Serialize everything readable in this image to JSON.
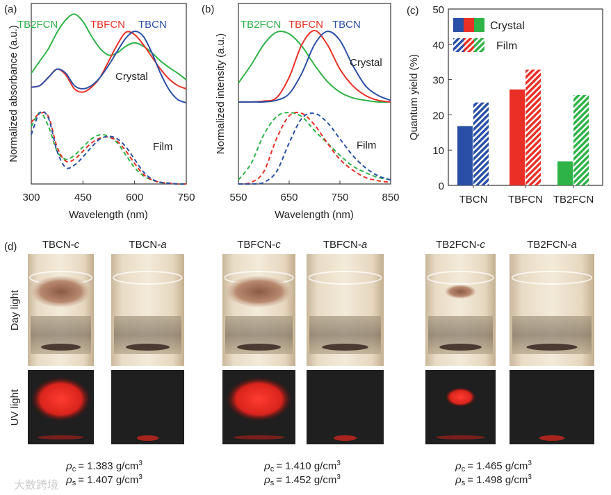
{
  "colors": {
    "TBCN": "#2a4fa6",
    "TBFCN": "#ea3026",
    "TB2FCN": "#2db346"
  },
  "chart_data": [
    {
      "panel": "(a)",
      "type": "line",
      "xlabel": "Wavelength (nm)",
      "ylabel": "Normalized absorbance (a.u.)",
      "xlim": [
        300,
        750
      ],
      "ylim": [
        0,
        2.2
      ],
      "xticks": [
        "300",
        "450",
        "600",
        "750"
      ],
      "annotations": {
        "crystal": "Crystal",
        "film": "Film"
      },
      "legend": [
        "TB2FCN",
        "TBFCN",
        "TBCN"
      ],
      "x": [
        300,
        325,
        350,
        375,
        400,
        425,
        450,
        475,
        500,
        525,
        550,
        575,
        600,
        625,
        650,
        675,
        700,
        725,
        750
      ],
      "series": [
        {
          "name": "TB2FCN",
          "state": "Crystal",
          "style": "solid",
          "values": [
            1.35,
            1.5,
            1.65,
            1.85,
            2.0,
            2.07,
            1.98,
            1.8,
            1.65,
            1.57,
            1.6,
            1.68,
            1.72,
            1.68,
            1.6,
            1.5,
            1.42,
            1.35,
            1.27
          ]
        },
        {
          "name": "TBFCN",
          "state": "Crystal",
          "style": "solid",
          "values": [
            1.18,
            1.2,
            1.3,
            1.4,
            1.33,
            1.16,
            1.12,
            1.18,
            1.3,
            1.5,
            1.7,
            1.85,
            1.82,
            1.7,
            1.55,
            1.4,
            1.28,
            1.2,
            1.16
          ]
        },
        {
          "name": "TBCN",
          "state": "Crystal",
          "style": "solid",
          "values": [
            1.18,
            1.2,
            1.3,
            1.4,
            1.35,
            1.2,
            1.16,
            1.2,
            1.3,
            1.45,
            1.62,
            1.78,
            1.86,
            1.8,
            1.6,
            1.35,
            1.15,
            1.03,
            0.99
          ]
        },
        {
          "name": "TB2FCN",
          "state": "Film",
          "style": "dashed",
          "values": [
            0.7,
            0.87,
            0.7,
            0.4,
            0.3,
            0.35,
            0.45,
            0.55,
            0.6,
            0.58,
            0.5,
            0.35,
            0.2,
            0.1,
            0.05,
            0.02,
            0.01,
            0,
            0
          ]
        },
        {
          "name": "TBFCN",
          "state": "Film",
          "style": "dashed",
          "values": [
            0.75,
            0.86,
            0.82,
            0.45,
            0.28,
            0.3,
            0.4,
            0.5,
            0.56,
            0.57,
            0.52,
            0.4,
            0.25,
            0.12,
            0.05,
            0.02,
            0.01,
            0,
            0
          ]
        },
        {
          "name": "TBCN",
          "state": "Film",
          "style": "dashed",
          "values": [
            0.6,
            0.87,
            0.8,
            0.4,
            0.2,
            0.23,
            0.33,
            0.45,
            0.55,
            0.58,
            0.55,
            0.45,
            0.3,
            0.15,
            0.06,
            0.02,
            0.01,
            0,
            0
          ]
        }
      ]
    },
    {
      "panel": "(b)",
      "type": "line",
      "xlabel": "Wavelength (nm)",
      "ylabel": "Normalized intensity (a.u.)",
      "xlim": [
        550,
        850
      ],
      "ylim": [
        0,
        2.2
      ],
      "xticks": [
        "550",
        "650",
        "750",
        "850"
      ],
      "annotations": {
        "crystal": "Crystal",
        "film": "Film"
      },
      "legend": [
        "TB2FCN",
        "TBFCN",
        "TBCN"
      ],
      "x": [
        550,
        575,
        600,
        625,
        650,
        675,
        700,
        725,
        750,
        775,
        800,
        825,
        850
      ],
      "series": [
        {
          "name": "TB2FCN",
          "state": "Crystal",
          "style": "solid",
          "values": [
            1.23,
            1.45,
            1.7,
            1.85,
            1.83,
            1.68,
            1.45,
            1.25,
            1.12,
            1.05,
            1.02,
            1.0,
            1.0
          ]
        },
        {
          "name": "TBFCN",
          "state": "Crystal",
          "style": "solid",
          "values": [
            1.0,
            1.0,
            1.01,
            1.05,
            1.3,
            1.7,
            1.87,
            1.7,
            1.4,
            1.2,
            1.08,
            1.02,
            1.0
          ]
        },
        {
          "name": "TBCN",
          "state": "Crystal",
          "style": "solid",
          "values": [
            1.0,
            1.0,
            1.0,
            1.02,
            1.1,
            1.35,
            1.7,
            1.86,
            1.75,
            1.45,
            1.2,
            1.08,
            1.02
          ]
        },
        {
          "name": "TB2FCN",
          "state": "Film",
          "style": "dashed",
          "values": [
            0.05,
            0.25,
            0.6,
            0.82,
            0.87,
            0.82,
            0.65,
            0.5,
            0.35,
            0.22,
            0.14,
            0.08,
            0.05
          ]
        },
        {
          "name": "TBFCN",
          "state": "Film",
          "style": "dashed",
          "values": [
            0,
            0.02,
            0.15,
            0.55,
            0.83,
            0.86,
            0.72,
            0.5,
            0.3,
            0.17,
            0.08,
            0.04,
            0.02
          ]
        },
        {
          "name": "TBCN",
          "state": "Film",
          "style": "dashed",
          "values": [
            0,
            0,
            0.02,
            0.15,
            0.5,
            0.8,
            0.86,
            0.75,
            0.55,
            0.35,
            0.2,
            0.1,
            0.05
          ]
        }
      ]
    },
    {
      "panel": "(c)",
      "type": "bar",
      "ylabel": "Quantum yield (%)",
      "ylim": [
        0,
        50
      ],
      "yticks": [
        "0",
        "10",
        "20",
        "30",
        "40",
        "50"
      ],
      "categories": [
        "TBCN",
        "TBFCN",
        "TB2FCN"
      ],
      "legend": [
        "Crystal",
        "Film"
      ],
      "series": [
        {
          "name": "Crystal",
          "pattern": "solid",
          "values": [
            16.8,
            27.2,
            6.8
          ]
        },
        {
          "name": "Film",
          "pattern": "hatched",
          "values": [
            23.5,
            32.8,
            25.6
          ]
        }
      ]
    }
  ],
  "panel_d": {
    "label": "(d)",
    "rows": [
      "Day light",
      "UV light"
    ],
    "samples": [
      {
        "base": "TBCN-",
        "suffix": "c",
        "state": "crystal"
      },
      {
        "base": "TBCN-",
        "suffix": "a",
        "state": "amorphous"
      },
      {
        "base": "TBFCN-",
        "suffix": "c",
        "state": "crystal"
      },
      {
        "base": "TBFCN-",
        "suffix": "a",
        "state": "amorphous"
      },
      {
        "base": "TB2FCN-",
        "suffix": "c",
        "state": "crystal"
      },
      {
        "base": "TB2FCN-",
        "suffix": "a",
        "state": "amorphous"
      }
    ],
    "densities": [
      {
        "c": "= 1.383 g/cm",
        "s": "= 1.407 g/cm"
      },
      {
        "c": "= 1.410 g/cm",
        "s": "= 1.452 g/cm"
      },
      {
        "c": "= 1.465 g/cm",
        "s": "= 1.498 g/cm"
      }
    ],
    "rho": "ρ",
    "sub_c": "c",
    "sub_s": "s",
    "sup": "3"
  },
  "watermark": "大数跨境"
}
